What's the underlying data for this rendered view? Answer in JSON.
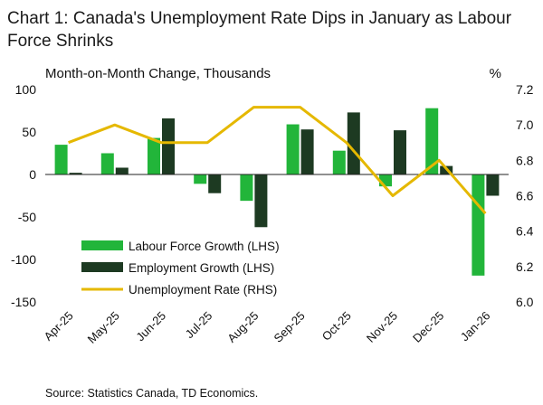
{
  "title": "Chart 1: Canada's Unemployment Rate Dips in January as Labour Force Shrinks",
  "source": "Source: Statistics Canada, TD Economics.",
  "colors": {
    "labour": "#22b53a",
    "employment": "#1d3a22",
    "rate": "#e5b800"
  },
  "chart_data": {
    "type": "bar",
    "title": "Chart 1: Canada's Unemployment Rate Dips in January as Labour Force Shrinks",
    "ylabel_left": "Month-on-Month Change, Thousands",
    "ylabel_right": "%",
    "categories": [
      "Apr-25",
      "May-25",
      "Jun-25",
      "Jul-25",
      "Aug-25",
      "Sep-25",
      "Oct-25",
      "Nov-25",
      "Dec-25",
      "Jan-26"
    ],
    "ylim_left": [
      -150,
      100
    ],
    "yticks_left": [
      "100",
      "50",
      "0",
      "-50",
      "-100",
      "-150"
    ],
    "ylim_right": [
      6.0,
      7.2
    ],
    "yticks_right": [
      "7.2",
      "7.0",
      "6.8",
      "6.6",
      "6.4",
      "6.2",
      "6.0"
    ],
    "series": [
      {
        "name": "Labour Force Growth (LHS)",
        "type": "bar",
        "axis": "left",
        "values": [
          35,
          25,
          43,
          -11,
          -31,
          59,
          28,
          -14,
          78,
          -119
        ]
      },
      {
        "name": "Employment Growth (LHS)",
        "type": "bar",
        "axis": "left",
        "values": [
          2,
          8,
          66,
          -22,
          -62,
          53,
          73,
          52,
          10,
          -25
        ]
      },
      {
        "name": "Unemployment Rate (RHS)",
        "type": "line",
        "axis": "right",
        "values": [
          6.9,
          7.0,
          6.9,
          6.9,
          7.1,
          7.1,
          6.9,
          6.6,
          6.8,
          6.5
        ]
      }
    ],
    "legend_position": "bottom-left",
    "grid": false
  }
}
